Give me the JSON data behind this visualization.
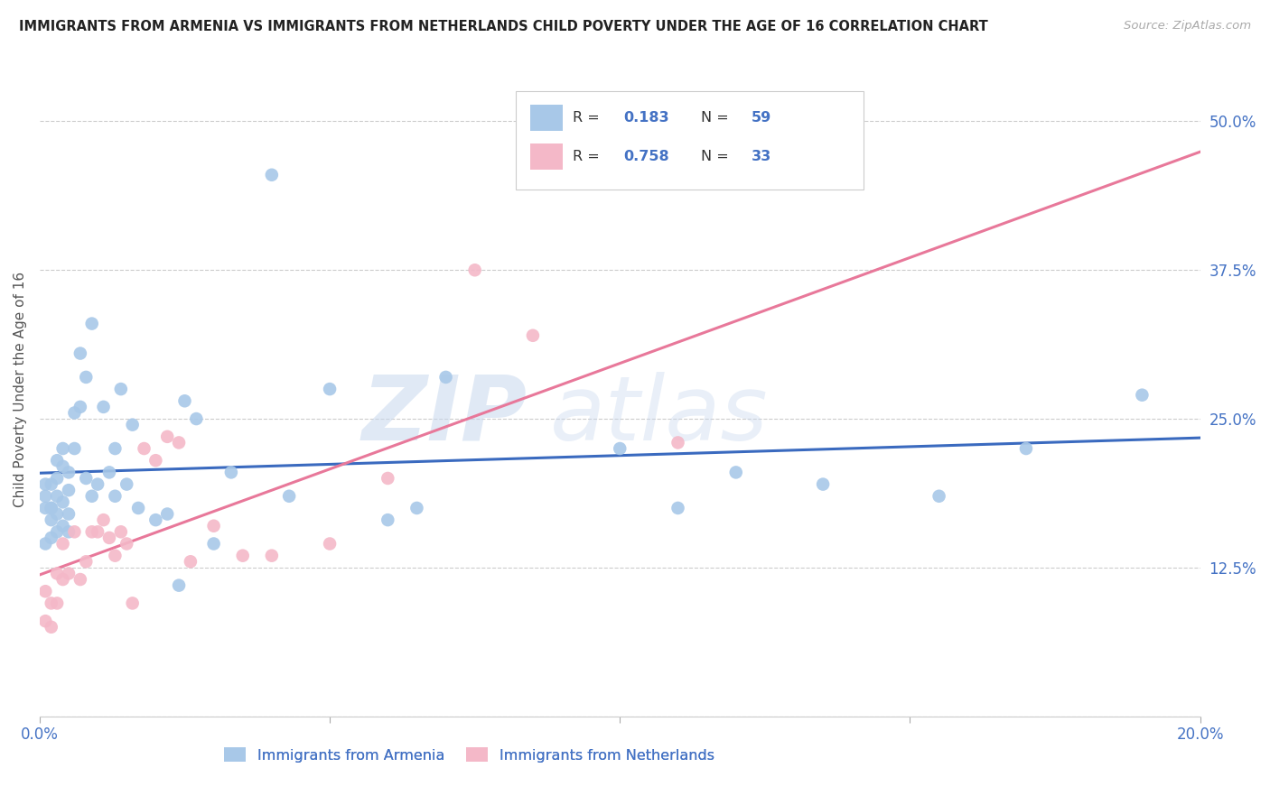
{
  "title": "IMMIGRANTS FROM ARMENIA VS IMMIGRANTS FROM NETHERLANDS CHILD POVERTY UNDER THE AGE OF 16 CORRELATION CHART",
  "source": "Source: ZipAtlas.com",
  "ylabel": "Child Poverty Under the Age of 16",
  "legend_label_1": "Immigrants from Armenia",
  "legend_label_2": "Immigrants from Netherlands",
  "R1": "0.183",
  "N1": "59",
  "R2": "0.758",
  "N2": "33",
  "color1": "#a8c8e8",
  "color2": "#f4b8c8",
  "line_color1": "#3a6abf",
  "line_color2": "#e8789a",
  "xlim": [
    0.0,
    0.2
  ],
  "ylim": [
    0.0,
    0.55
  ],
  "xticks": [
    0.0,
    0.05,
    0.1,
    0.15,
    0.2
  ],
  "xticklabels": [
    "0.0%",
    "",
    "",
    "",
    "20.0%"
  ],
  "yticks": [
    0.0,
    0.125,
    0.25,
    0.375,
    0.5
  ],
  "yticklabels": [
    "",
    "12.5%",
    "25.0%",
    "37.5%",
    "50.0%"
  ],
  "armenia_x": [
    0.001,
    0.001,
    0.001,
    0.001,
    0.002,
    0.002,
    0.002,
    0.002,
    0.002,
    0.003,
    0.003,
    0.003,
    0.003,
    0.003,
    0.004,
    0.004,
    0.004,
    0.004,
    0.005,
    0.005,
    0.005,
    0.005,
    0.006,
    0.006,
    0.007,
    0.007,
    0.008,
    0.008,
    0.009,
    0.009,
    0.01,
    0.011,
    0.012,
    0.013,
    0.013,
    0.014,
    0.015,
    0.016,
    0.017,
    0.02,
    0.022,
    0.024,
    0.025,
    0.027,
    0.03,
    0.033,
    0.04,
    0.043,
    0.05,
    0.06,
    0.065,
    0.07,
    0.1,
    0.11,
    0.12,
    0.135,
    0.155,
    0.17,
    0.19
  ],
  "armenia_y": [
    0.175,
    0.185,
    0.195,
    0.145,
    0.175,
    0.15,
    0.165,
    0.175,
    0.195,
    0.185,
    0.17,
    0.2,
    0.215,
    0.155,
    0.18,
    0.21,
    0.225,
    0.16,
    0.19,
    0.205,
    0.17,
    0.155,
    0.255,
    0.225,
    0.305,
    0.26,
    0.285,
    0.2,
    0.33,
    0.185,
    0.195,
    0.26,
    0.205,
    0.225,
    0.185,
    0.275,
    0.195,
    0.245,
    0.175,
    0.165,
    0.17,
    0.11,
    0.265,
    0.25,
    0.145,
    0.205,
    0.455,
    0.185,
    0.275,
    0.165,
    0.175,
    0.285,
    0.225,
    0.175,
    0.205,
    0.195,
    0.185,
    0.225,
    0.27
  ],
  "netherlands_x": [
    0.001,
    0.001,
    0.002,
    0.002,
    0.003,
    0.003,
    0.004,
    0.004,
    0.005,
    0.006,
    0.007,
    0.008,
    0.009,
    0.01,
    0.011,
    0.012,
    0.013,
    0.014,
    0.015,
    0.016,
    0.018,
    0.02,
    0.022,
    0.024,
    0.026,
    0.03,
    0.035,
    0.04,
    0.05,
    0.06,
    0.075,
    0.085,
    0.11
  ],
  "netherlands_y": [
    0.105,
    0.08,
    0.095,
    0.075,
    0.12,
    0.095,
    0.145,
    0.115,
    0.12,
    0.155,
    0.115,
    0.13,
    0.155,
    0.155,
    0.165,
    0.15,
    0.135,
    0.155,
    0.145,
    0.095,
    0.225,
    0.215,
    0.235,
    0.23,
    0.13,
    0.16,
    0.135,
    0.135,
    0.145,
    0.2,
    0.375,
    0.32,
    0.23
  ],
  "watermark_zip": "ZIP",
  "watermark_atlas": "atlas",
  "background_color": "#ffffff",
  "grid_color": "#cccccc"
}
